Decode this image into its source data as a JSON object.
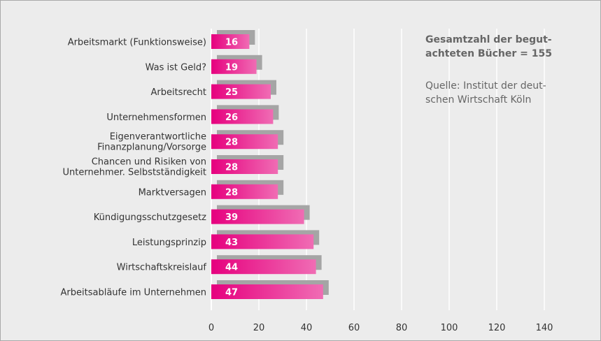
{
  "chart_data": {
    "type": "bar",
    "orientation": "horizontal",
    "categories": [
      "Arbeitsmarkt (Funktionsweise)",
      "Was ist Geld?",
      "Arbeitsrecht",
      "Unternehmensformen",
      "Eigenverantwortliche\nFinanzplanung/Vorsorge",
      "Chancen und Risiken von\nUnternehmer. Selbstständigkeit",
      "Marktversagen",
      "Kündigungsschutzgesetz",
      "Leistungsprinzip",
      "Wirtschaftskreislauf",
      "Arbeitsabläufe im Unternehmen"
    ],
    "values": [
      16,
      19,
      25,
      26,
      28,
      28,
      28,
      39,
      43,
      44,
      47
    ],
    "xlim": [
      0,
      160
    ],
    "xticks": [
      0,
      20,
      40,
      60,
      80,
      100,
      120,
      140
    ],
    "grid": "vertical",
    "colors": {
      "bar_dark": "#e6007e",
      "bar_light": "#f06cb4",
      "shadow": "#a5a5a5",
      "background": "#ececec",
      "grid": "#ffffff"
    }
  },
  "notes": {
    "total": "Gesamtzahl der begut-\nachteten Bücher = 155",
    "source": "Quelle: Institut der deut-\nschen Wirtschaft Köln"
  }
}
